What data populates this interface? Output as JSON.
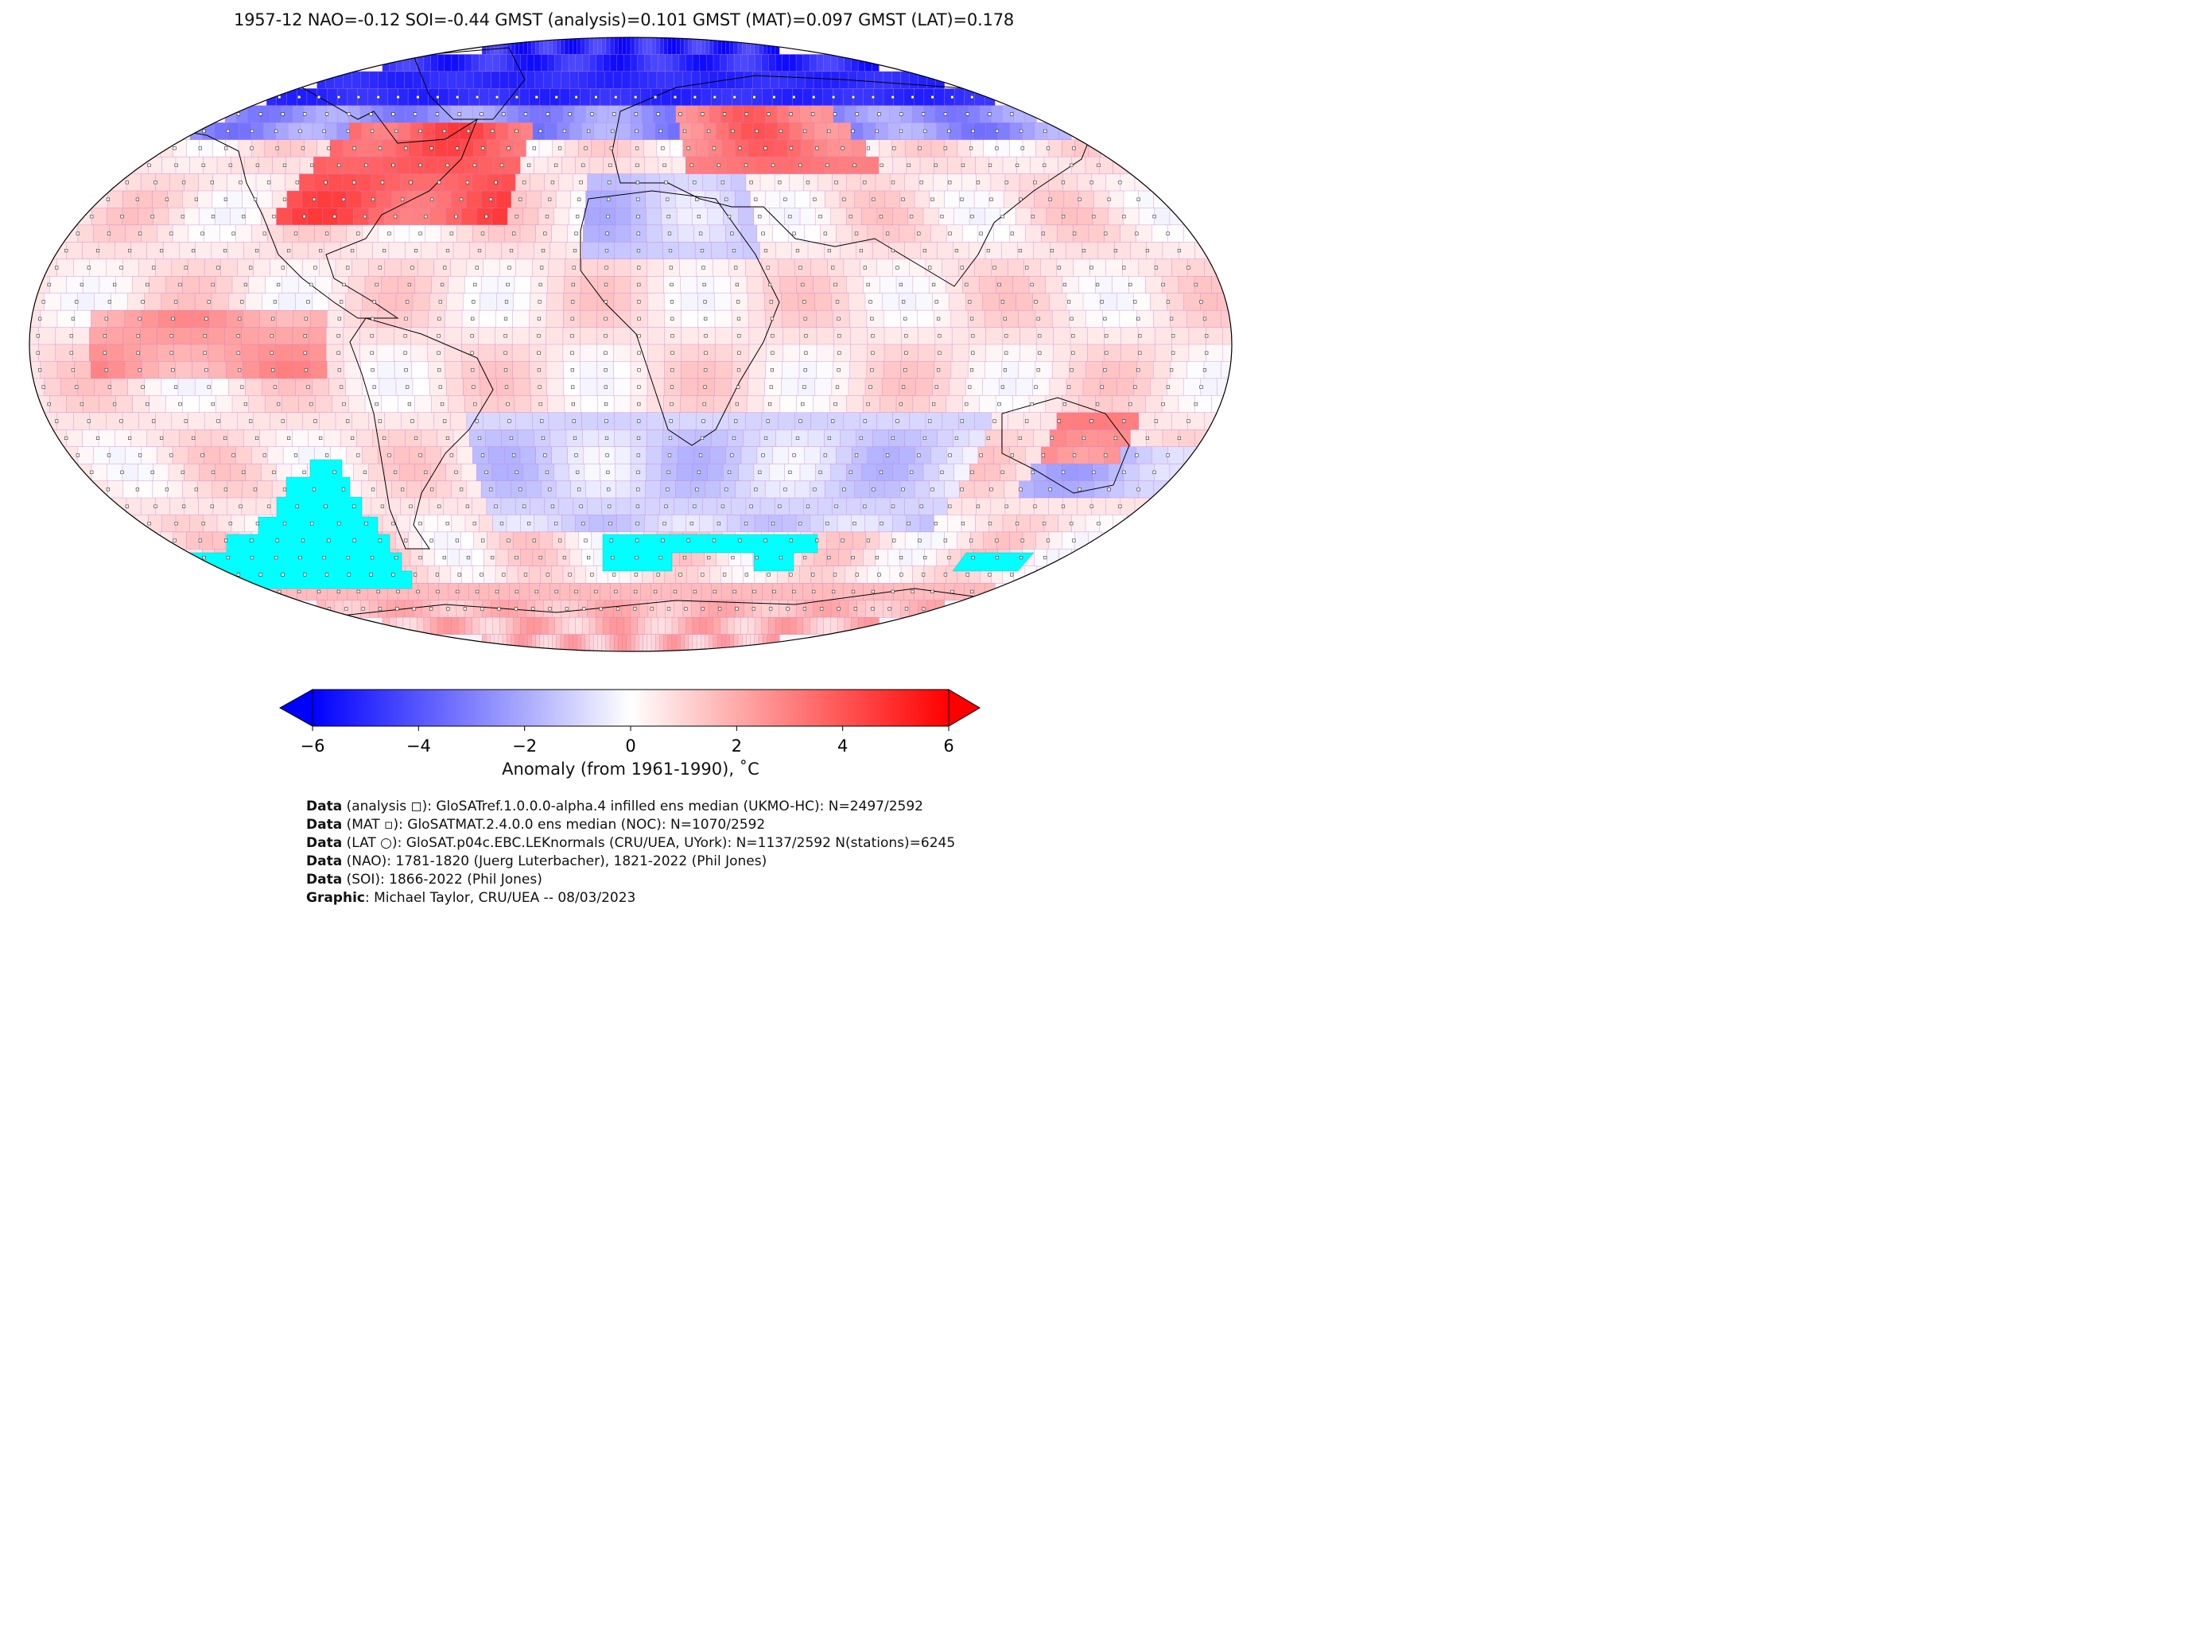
{
  "title": "1957-12 NAO=-0.12 SOI=-0.44 GMST (analysis)=0.101 GMST (MAT)=0.097 GMST (LAT)=0.178",
  "map": {
    "projection": "Robinson",
    "grid_cell_outline_color": "#c77bd6",
    "missing_data_color": "#00ffff",
    "coast_color": "#000000"
  },
  "colorbar": {
    "min": -6,
    "max": 6,
    "ticks": [
      "−6",
      "−4",
      "−2",
      "0",
      "2",
      "4",
      "6"
    ],
    "label": "Anomaly (from 1961-1990), ˚C",
    "colormap": "bwr",
    "colors": {
      "min": "#0000ff",
      "mid": "#ffffff",
      "max": "#ff0000"
    },
    "extend": "both"
  },
  "credits": [
    {
      "head": "Data",
      "text": " (analysis ◻): GloSATref.1.0.0.0-alpha.4 infilled ens median (UKMO-HC): N=2497/2592"
    },
    {
      "head": "Data",
      "text": " (MAT ▫): GloSATMAT.2.4.0.0 ens median (NOC): N=1070/2592"
    },
    {
      "head": "Data",
      "text": " (LAT ○): GloSAT.p04c.EBC.LEKnormals (CRU/UEA, UYork): N=1137/2592 N(stations)=6245"
    },
    {
      "head": "Data",
      "text": " (NAO): 1781-1820 (Juerg Luterbacher), 1821-2022 (Phil Jones)"
    },
    {
      "head": "Data",
      "text": " (SOI): 1866-2022 (Phil Jones)"
    },
    {
      "head": "Graphic",
      "text": ": Michael Taylor, CRU/UEA -- 08/03/2023"
    }
  ]
}
